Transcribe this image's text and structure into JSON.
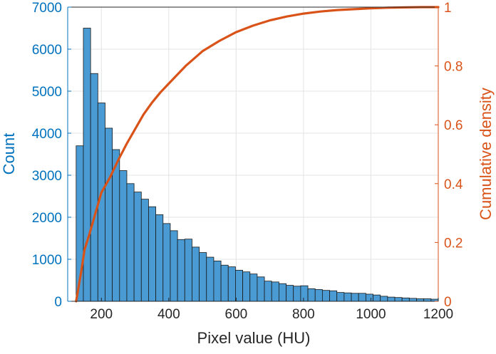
{
  "chart_data": {
    "type": "bar",
    "subtype": "histogram-with-cumulative-line",
    "title": "",
    "xlabel": "Pixel value (HU)",
    "ylabel_left": "Count",
    "ylabel_right": "Cumulative density",
    "xlim": [
      100,
      1200
    ],
    "ylim_left": [
      0,
      7000
    ],
    "ylim_right": [
      0,
      1
    ],
    "x_ticks": [
      200,
      400,
      600,
      800,
      1000,
      1200
    ],
    "y_ticks_left": [
      0,
      1000,
      2000,
      3000,
      4000,
      5000,
      6000,
      7000
    ],
    "y_ticks_right": [
      0,
      0.2,
      0.4,
      0.6,
      0.8,
      1
    ],
    "grid": true,
    "bin_start": 125,
    "bin_width": 21.5,
    "histogram": {
      "name": "Count",
      "color": "#4A9BD4",
      "edge_color": "#1a1a1a",
      "values": [
        3700,
        6500,
        5420,
        4720,
        4120,
        3610,
        3110,
        2800,
        2600,
        2430,
        2250,
        2060,
        1850,
        1680,
        1470,
        1480,
        1290,
        1160,
        1050,
        960,
        860,
        820,
        740,
        700,
        650,
        580,
        480,
        460,
        420,
        380,
        360,
        370,
        300,
        280,
        260,
        250,
        210,
        200,
        190,
        190,
        170,
        150,
        120,
        100,
        90,
        80,
        70,
        60,
        60,
        50,
        40,
        30,
        30
      ]
    },
    "cumulative": {
      "name": "Cumulative density",
      "color": "#D95319",
      "x": [
        125,
        140,
        150,
        165,
        180,
        200,
        225,
        250,
        275,
        300,
        325,
        350,
        375,
        400,
        450,
        500,
        550,
        600,
        650,
        700,
        750,
        800,
        850,
        900,
        950,
        1000,
        1050,
        1100,
        1150,
        1200
      ],
      "y": [
        0,
        0.1,
        0.175,
        0.23,
        0.29,
        0.37,
        0.42,
        0.48,
        0.535,
        0.585,
        0.635,
        0.675,
        0.71,
        0.74,
        0.8,
        0.85,
        0.885,
        0.915,
        0.937,
        0.955,
        0.968,
        0.978,
        0.985,
        0.99,
        0.993,
        0.996,
        0.998,
        0.999,
        1,
        1
      ]
    }
  }
}
